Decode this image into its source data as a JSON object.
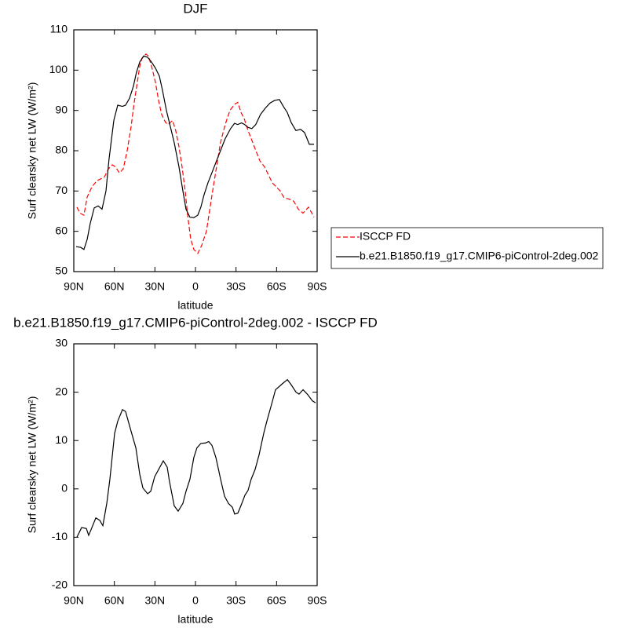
{
  "chart_data": [
    {
      "type": "line",
      "title": "DJF",
      "xlabel": "latitude",
      "ylabel": "Surf clearsky net LW (W/m²)",
      "xlim": [
        90,
        -90
      ],
      "ylim": [
        50,
        110
      ],
      "xticks": [
        {
          "value": 90,
          "label": "90N"
        },
        {
          "value": 60,
          "label": "60N"
        },
        {
          "value": 30,
          "label": "30N"
        },
        0,
        {
          "value": -30,
          "label": "30S"
        },
        {
          "value": -60,
          "label": "60S"
        },
        {
          "value": -90,
          "label": "90S"
        }
      ],
      "yticks": [
        50,
        60,
        70,
        80,
        90,
        100,
        110
      ],
      "legend": "right",
      "series": [
        {
          "name": "ISCCP FD",
          "color": "#ff0000",
          "dash": true,
          "x": [
            87.7,
            85.4,
            82.5,
            80.1,
            76.6,
            73.1,
            70.2,
            67.3,
            64.4,
            61.5,
            59.2,
            56.3,
            53.4,
            50.5,
            47.6,
            45.3,
            43,
            41.2,
            39.5,
            36.6,
            34.8,
            32.5,
            29.6,
            27.3,
            25,
            22.1,
            20.4,
            16.9,
            14.6,
            12.2,
            9.9,
            7.6,
            5.8,
            3.5,
            1.2,
            -1.7,
            -4.6,
            -8.1,
            -10.4,
            -12.7,
            -15.6,
            -18.5,
            -22,
            -25.5,
            -28.9,
            -31.3,
            -33.7,
            -36,
            -38.9,
            -41.8,
            -44.7,
            -47.6,
            -51.1,
            -54,
            -56.9,
            -59.8,
            -62.7,
            -65.6,
            -69.1,
            -72.6,
            -76.1,
            -79.5,
            -83.6,
            -87.7
          ],
          "values": [
            66,
            64.5,
            64,
            68.5,
            71,
            72.5,
            73,
            73.5,
            75.5,
            76.5,
            76,
            74.5,
            75.5,
            80,
            86,
            92,
            97,
            101,
            103,
            104,
            103.5,
            101,
            97,
            92.5,
            89,
            87,
            86.5,
            87.5,
            85,
            81,
            76,
            70,
            64,
            58,
            55.5,
            54.5,
            56.5,
            60,
            65,
            70,
            76,
            82,
            86.5,
            90,
            91.5,
            92,
            89.5,
            88,
            85,
            82.5,
            80,
            77.5,
            76,
            74,
            72,
            71,
            70,
            68.3,
            68,
            67.5,
            65.5,
            64.5,
            66,
            63.5
          ]
        },
        {
          "name": "b.e21.B1850.f19_g17.CMIP6-piControl-2deg.002",
          "color": "#000000",
          "dash": false,
          "x": [
            88.3,
            84.8,
            82.5,
            80.1,
            77.8,
            74.9,
            72,
            69.1,
            66.2,
            63.9,
            60.4,
            57.5,
            54,
            51.7,
            48.8,
            45.9,
            43.6,
            41.2,
            38.3,
            35.4,
            32.5,
            29.6,
            26.7,
            24.4,
            21.5,
            18.6,
            15.7,
            12.2,
            9.3,
            7,
            4.1,
            1.2,
            -1.7,
            -4,
            -6.3,
            -9.2,
            -12.7,
            -15.6,
            -18.5,
            -22,
            -26,
            -28.9,
            -31.2,
            -34.1,
            -36.4,
            -38.8,
            -41.7,
            -44.6,
            -48.1,
            -51.5,
            -55,
            -58.6,
            -62.1,
            -65,
            -67.9,
            -70.8,
            -74.3,
            -77.8,
            -80.7,
            -84.2,
            -87.7
          ],
          "values": [
            56.2,
            56,
            55.5,
            58,
            62,
            65.8,
            66.3,
            65.5,
            70,
            78,
            87.5,
            91.3,
            91,
            91.3,
            93,
            96,
            99.5,
            102,
            103.5,
            103.2,
            102,
            100.5,
            98.5,
            95,
            90,
            86,
            82,
            76,
            70,
            65.5,
            63.5,
            63.4,
            64,
            66,
            69,
            72,
            75,
            77.5,
            80,
            83,
            85.5,
            86.8,
            86.5,
            86.9,
            86.5,
            85.8,
            85.5,
            86.5,
            89,
            90.5,
            91.8,
            92.5,
            92.7,
            91,
            89.5,
            87,
            85,
            85.3,
            84.5,
            81.6,
            81.6
          ]
        }
      ]
    },
    {
      "type": "line",
      "title": "b.e21.B1850.f19_g17.CMIP6-piControl-2deg.002 - ISCCP FD",
      "xlabel": "latitude",
      "ylabel": "Surf clearsky net LW (W/m²)",
      "xlim": [
        90,
        -90
      ],
      "ylim": [
        -20,
        30
      ],
      "xticks": [
        {
          "value": 90,
          "label": "90N"
        },
        {
          "value": 60,
          "label": "60N"
        },
        {
          "value": 30,
          "label": "30N"
        },
        0,
        {
          "value": -30,
          "label": "30S"
        },
        {
          "value": -60,
          "label": "60S"
        },
        {
          "value": -90,
          "label": "90S"
        }
      ],
      "yticks": [
        -20,
        -10,
        0,
        10,
        20,
        30
      ],
      "series": [
        {
          "color": "#000000",
          "dash": false,
          "x": [
            87.7,
            84.2,
            80.7,
            79,
            76.6,
            73.7,
            70.8,
            68.5,
            65.6,
            63.3,
            59.8,
            57.5,
            54,
            51.7,
            48.2,
            44.1,
            41.2,
            38.9,
            35.4,
            33.1,
            30.2,
            23.8,
            20.9,
            19.2,
            15.7,
            12.8,
            9.3,
            7,
            4.1,
            1.2,
            -1.1,
            -4,
            -7.5,
            -9.8,
            -12.2,
            -15.1,
            -18.6,
            -21.5,
            -24.4,
            -27.3,
            -29,
            -31.4,
            -34.3,
            -36.6,
            -38.9,
            -41.2,
            -44.1,
            -47,
            -50.5,
            -52.8,
            -56.3,
            -59.2,
            -64.5,
            -68,
            -70.9,
            -74.4,
            -76.6,
            -79.6,
            -83,
            -86.5,
            -88.8
          ],
          "values": [
            -10,
            -8,
            -8.2,
            -9.6,
            -8,
            -6,
            -6.5,
            -7.6,
            -3,
            2,
            11.5,
            14,
            16.4,
            16,
            12.5,
            8.5,
            3,
            0.2,
            -1,
            -0.5,
            2.5,
            5.8,
            4.5,
            1.5,
            -3.5,
            -4.6,
            -3,
            -0.5,
            2,
            6.5,
            8.5,
            9.4,
            9.5,
            9.8,
            9,
            6.5,
            2,
            -1.5,
            -3,
            -3.8,
            -5.2,
            -5,
            -3,
            -1.3,
            -0.3,
            2,
            4,
            7,
            11.5,
            14,
            17.5,
            20.5,
            21.8,
            22.6,
            21.5,
            20,
            19.6,
            20.5,
            19.5,
            18.2,
            17.8
          ]
        }
      ]
    }
  ]
}
